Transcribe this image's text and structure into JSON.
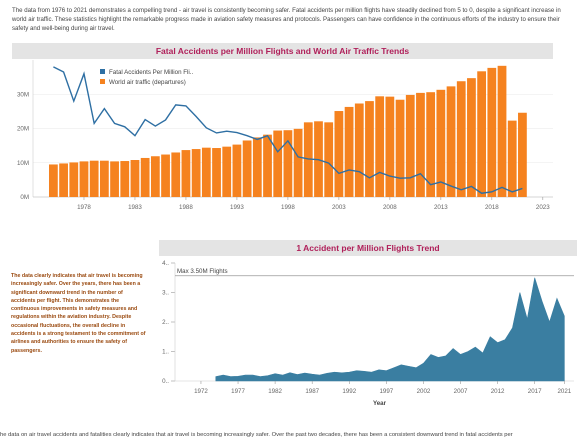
{
  "intro_text": "The data from 1976 to 2021 demonstrates a compelling trend - air travel is consistently becoming safer. Fatal accidents per million flights have steadily declined from 5 to 0, despite a significant increase in world air traffic. These statistics highlight the remarkable progress made in aviation safety measures and protocols. Passengers can have confidence in the continuous efforts of the industry to ensure their safety and well-being during air travel.",
  "side_note": "The data clearly indicates that air travel is becoming increasingly safer. Over the years, there has been a significant downward trend in the number of accidents per flight. This demonstrates the continuous improvements in safety measures and regulations within the aviation industry. Despite occasional fluctuations, the overall decline in accidents is a strong testament to the commitment of airlines and authorities to ensure the safety of passengers.",
  "footer_text": "he data on air travel accidents and fatalities clearly indicates that air travel is becoming increasingly safer. Over the past two decades, there has been a consistent downward trend in fatal accidents per",
  "colors": {
    "bars": "#f5821f",
    "line": "#2e6fa3",
    "area": "#3a7ea1",
    "title": "#b0205a"
  },
  "chart_data": [
    {
      "type": "bar",
      "title": "Fatal Accidents per Million Flights and World Air Traffic Trends",
      "x": [
        1975,
        1976,
        1977,
        1978,
        1979,
        1980,
        1981,
        1982,
        1983,
        1984,
        1985,
        1986,
        1987,
        1988,
        1989,
        1990,
        1991,
        1992,
        1993,
        1994,
        1995,
        1996,
        1997,
        1998,
        1999,
        2000,
        2001,
        2002,
        2003,
        2004,
        2005,
        2006,
        2007,
        2008,
        2009,
        2010,
        2011,
        2012,
        2013,
        2014,
        2015,
        2016,
        2017,
        2018,
        2019,
        2020,
        2021
      ],
      "xticks": [
        "1978",
        "1983",
        "1988",
        "1993",
        "1998",
        "2003",
        "2008",
        "2013",
        "2018",
        "2023"
      ],
      "yticks": [
        "0M",
        "10M",
        "20M",
        "30M"
      ],
      "ylim": [
        0,
        40
      ],
      "legend": [
        "Fatal Accidents Per Million Fli..",
        "World air traffic (departures)"
      ],
      "legend_position": "top-left",
      "series": [
        {
          "name": "World air traffic (departures)",
          "values": [
            9.5,
            9.8,
            10.1,
            10.4,
            10.6,
            10.6,
            10.4,
            10.5,
            10.8,
            11.4,
            11.9,
            12.4,
            13.0,
            13.7,
            14.0,
            14.4,
            14.3,
            14.7,
            15.3,
            16.5,
            17.4,
            18.2,
            19.4,
            19.5,
            19.9,
            21.8,
            22.1,
            21.8,
            25.1,
            26.3,
            27.3,
            28.0,
            29.4,
            29.3,
            28.4,
            29.8,
            30.4,
            30.6,
            31.3,
            32.3,
            33.8,
            34.7,
            36.7,
            37.7,
            38.3,
            22.3,
            24.6
          ]
        },
        {
          "name": "Fatal Accidents Per Million Fli..",
          "values": [
            38,
            36.5,
            28,
            36,
            21.5,
            25.8,
            21.5,
            20.5,
            17.9,
            22.6,
            20.7,
            22.5,
            26.9,
            26.6,
            23.5,
            20.2,
            18.7,
            19.2,
            18.8,
            17.9,
            16.8,
            17.9,
            13.2,
            16.4,
            11.7,
            11.1,
            10.9,
            9.9,
            6.9,
            7.9,
            7.4,
            5.6,
            7.2,
            6.1,
            5.5,
            5.6,
            6.8,
            3.6,
            4.4,
            3.2,
            2.1,
            3.1,
            1.1,
            1.5,
            2.8,
            1.5,
            2.5
          ]
        }
      ]
    },
    {
      "type": "area",
      "title": "1 Accident per Million Flights Trend",
      "annotation": "Max 3.50M Flights",
      "xlabel": "Year",
      "xticks": [
        "1972",
        "1977",
        "1982",
        "1987",
        "1992",
        "1997",
        "2002",
        "2007",
        "2012",
        "2017",
        "2021"
      ],
      "yticks": [
        "0..",
        "1..",
        "2..",
        "3..",
        "4.."
      ],
      "ylim": [
        0,
        4
      ],
      "x": [
        1974,
        1975,
        1976,
        1977,
        1978,
        1979,
        1980,
        1981,
        1982,
        1983,
        1984,
        1985,
        1986,
        1987,
        1988,
        1989,
        1990,
        1991,
        1992,
        1993,
        1994,
        1995,
        1996,
        1997,
        1998,
        1999,
        2000,
        2001,
        2002,
        2003,
        2004,
        2005,
        2006,
        2007,
        2008,
        2009,
        2010,
        2011,
        2012,
        2013,
        2014,
        2015,
        2016,
        2017,
        2018,
        2019,
        2020,
        2021
      ],
      "values": [
        0.15,
        0.2,
        0.15,
        0.16,
        0.2,
        0.2,
        0.15,
        0.18,
        0.25,
        0.2,
        0.28,
        0.22,
        0.27,
        0.23,
        0.2,
        0.26,
        0.3,
        0.28,
        0.3,
        0.35,
        0.33,
        0.3,
        0.38,
        0.35,
        0.45,
        0.55,
        0.5,
        0.45,
        0.6,
        0.9,
        0.8,
        0.85,
        1.1,
        0.9,
        1.0,
        1.15,
        0.95,
        1.5,
        1.3,
        1.4,
        1.8,
        3.0,
        2.1,
        3.5,
        2.7,
        2.0,
        2.8,
        2.2
      ]
    }
  ]
}
